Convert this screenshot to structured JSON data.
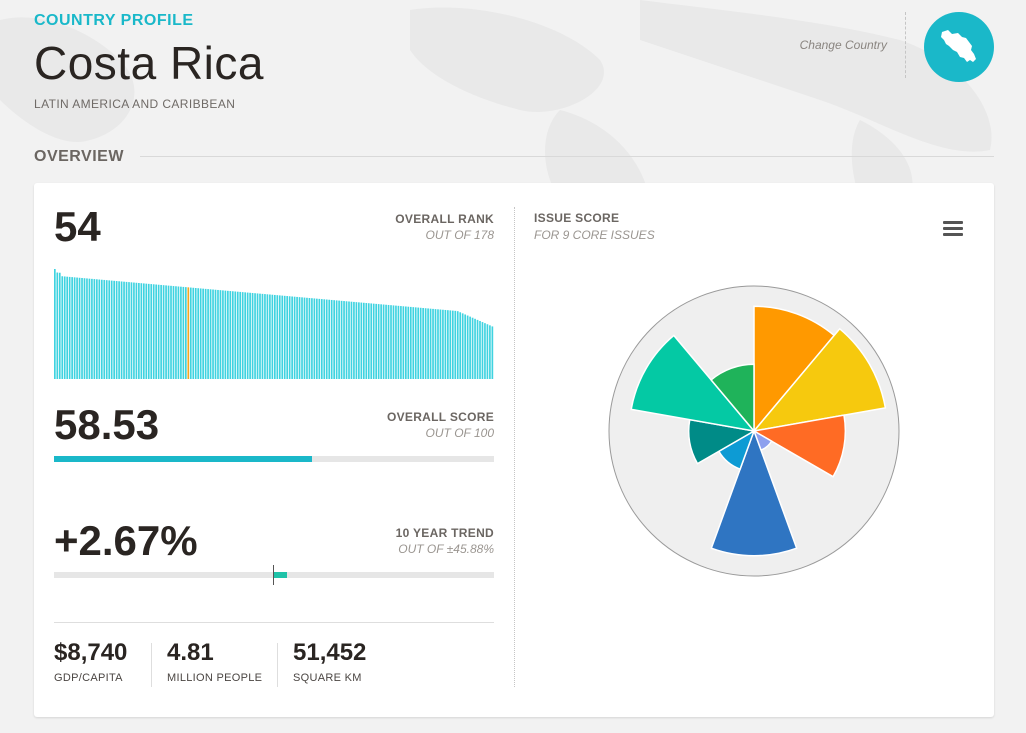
{
  "header": {
    "eyebrow": "COUNTRY PROFILE",
    "country": "Costa Rica",
    "region": "LATIN AMERICA AND CARIBBEAN",
    "change_label": "Change Country",
    "accent_color": "#1ab8c9",
    "badge_icon": "costa-rica-map-icon"
  },
  "section": {
    "title": "OVERVIEW"
  },
  "rank": {
    "value": "54",
    "label": "OVERALL RANK",
    "sub": "OUT OF 178",
    "position": 54,
    "total": 178,
    "highlight_color": "#f5a623"
  },
  "score": {
    "value": "58.53",
    "label": "OVERALL SCORE",
    "sub": "OUT OF 100",
    "fraction": 0.5853
  },
  "trend": {
    "value": "+2.67%",
    "label": "10 YEAR TREND",
    "sub": "OUT OF ±45.88%",
    "fraction": 0.0582
  },
  "stats": [
    {
      "value": "$8,740",
      "label": "GDP/CAPITA"
    },
    {
      "value": "4.81",
      "label": "MILLION PEOPLE"
    },
    {
      "value": "51,452",
      "label": "SQUARE KM"
    }
  ],
  "issue": {
    "label": "ISSUE SCORE",
    "sub": "FOR 9 CORE ISSUES",
    "menu_icon": "hamburger-menu-icon"
  },
  "chart_data": [
    {
      "type": "bar",
      "title": "OVERALL RANK",
      "categories_count": 178,
      "highlight_index": 54,
      "values_note": "descending distribution of country scores",
      "ylim": [
        0,
        100
      ]
    },
    {
      "type": "pie",
      "title": "ISSUE SCORE",
      "subtype": "polar-area",
      "slices": [
        {
          "value": 86,
          "color": "#ff9900"
        },
        {
          "value": 92,
          "color": "#f6c90e"
        },
        {
          "value": 63,
          "color": "#ff6b24"
        },
        {
          "value": 14,
          "color": "#8ea0ee"
        },
        {
          "value": 86,
          "color": "#2f75c2"
        },
        {
          "value": 28,
          "color": "#0d9bd4"
        },
        {
          "value": 45,
          "color": "#008b87"
        },
        {
          "value": 86,
          "color": "#04c9a4"
        },
        {
          "value": 46,
          "color": "#1fb35a"
        }
      ],
      "max": 100
    }
  ]
}
